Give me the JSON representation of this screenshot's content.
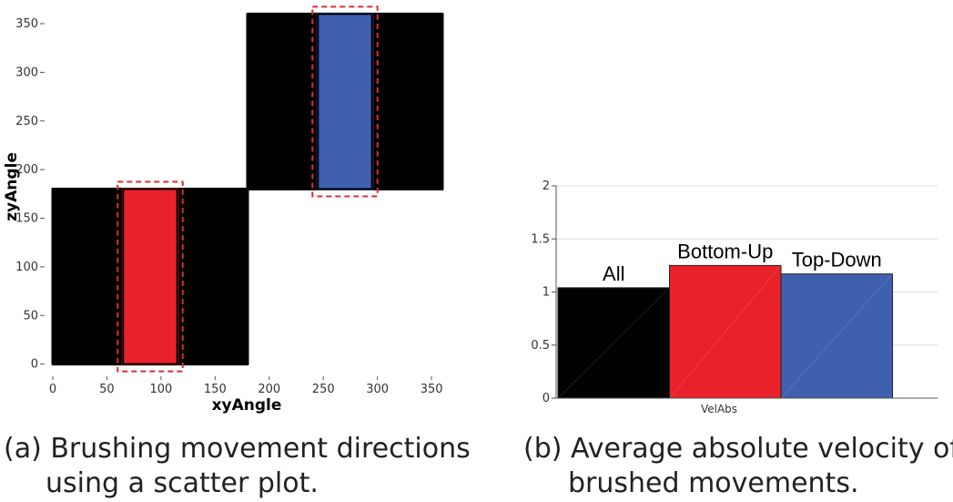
{
  "captions": {
    "a_line1": "(a) Brushing movement directions",
    "a_line2": "using a scatter plot.",
    "b_line1": "(b) Average absolute velocity of",
    "b_line2": "brushed movements."
  },
  "chart_data": [
    {
      "type": "scatter",
      "xlabel": "xyAngle",
      "ylabel": "zyAngle",
      "xlim": [
        0,
        360
      ],
      "ylim": [
        -5,
        365
      ],
      "xticks": [
        0,
        50,
        100,
        150,
        200,
        250,
        300,
        350
      ],
      "yticks": [
        0,
        50,
        100,
        150,
        200,
        250,
        300,
        350
      ],
      "xtick_labels": [
        "0",
        "50",
        "100",
        "150",
        "200",
        "250",
        "300",
        "350"
      ],
      "ytick_labels": [
        "0",
        "50",
        "100",
        "150",
        "200",
        "250",
        "300",
        "350"
      ],
      "point_regions": [
        {
          "color": "#000000",
          "x_range": [
            0,
            180
          ],
          "y_range": [
            0,
            180
          ]
        },
        {
          "color": "#000000",
          "x_range": [
            180,
            360
          ],
          "y_range": [
            180,
            360
          ]
        },
        {
          "color": "#e8212b",
          "x_range": [
            65,
            115
          ],
          "y_range": [
            0,
            180
          ]
        },
        {
          "color": "#3f5faf",
          "x_range": [
            245,
            295
          ],
          "y_range": [
            180,
            360
          ]
        }
      ],
      "brushes": [
        {
          "x_range": [
            65,
            115
          ],
          "y_range": [
            0,
            180
          ]
        },
        {
          "x_range": [
            245,
            295
          ],
          "y_range": [
            180,
            360
          ]
        }
      ]
    },
    {
      "type": "bar",
      "categories": [
        "All",
        "Bottom-Up",
        "Top-Down"
      ],
      "values": [
        1.04,
        1.25,
        1.17
      ],
      "colors": [
        "#000000",
        "#e8212b",
        "#3f5faf"
      ],
      "xlabel": "VelAbs",
      "ylim": [
        0,
        2
      ],
      "yticks": [
        0,
        0.5,
        1,
        1.5,
        2
      ],
      "ytick_labels": [
        "0",
        "0.5",
        "1",
        "1.5",
        "2"
      ]
    }
  ]
}
